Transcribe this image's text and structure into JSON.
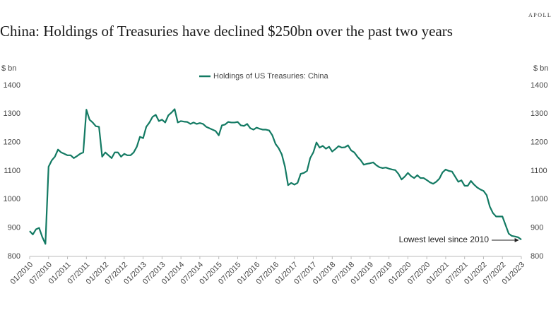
{
  "chart_data": {
    "type": "line",
    "title": "China: Holdings of Treasuries have declined $250bn over the past two years",
    "brand": "APOLLO",
    "y_label": "$ bn",
    "y2_label": "$ bn",
    "annotation": "Lowest level since 2010",
    "categories": [
      "01/2010",
      null,
      null,
      null,
      null,
      null,
      "07/2010",
      null,
      null,
      null,
      null,
      null,
      "01/2011",
      null,
      null,
      null,
      null,
      null,
      "07/2011",
      null,
      null,
      null,
      null,
      null,
      "01/2012",
      null,
      null,
      null,
      null,
      null,
      "07/2012",
      null,
      null,
      null,
      null,
      null,
      "01/2013",
      null,
      null,
      null,
      null,
      null,
      "07/2013",
      null,
      null,
      null,
      null,
      null,
      "01/2014",
      null,
      null,
      null,
      null,
      null,
      "07/2014",
      null,
      null,
      null,
      null,
      null,
      "01/2015",
      null,
      null,
      null,
      null,
      null,
      "07/2015",
      null,
      null,
      null,
      null,
      null,
      "01/2016",
      null,
      null,
      null,
      null,
      null,
      "07/2016",
      null,
      null,
      null,
      null,
      null,
      "01/2017",
      null,
      null,
      null,
      null,
      null,
      "07/2017",
      null,
      null,
      null,
      null,
      null,
      "01/2018",
      null,
      null,
      null,
      null,
      null,
      "07/2018",
      null,
      null,
      null,
      null,
      null,
      "01/2019",
      null,
      null,
      null,
      null,
      null,
      "07/2019",
      null,
      null,
      null,
      null,
      null,
      "01/2020",
      null,
      null,
      null,
      null,
      null,
      "07/2020",
      null,
      null,
      null,
      null,
      null,
      "01/2021",
      null,
      null,
      null,
      null,
      null,
      "07/2021",
      null,
      null,
      null,
      null,
      null,
      "01/2022",
      null,
      null,
      null,
      null,
      null,
      "07/2022",
      null,
      null,
      null,
      null,
      null,
      "01/2023"
    ],
    "series": [
      {
        "name": "Holdings of US Treasuries: China",
        "color": "#137a63",
        "values": [
          889,
          877,
          895,
          900,
          868,
          844,
          1115,
          1137,
          1150,
          1175,
          1165,
          1160,
          1155,
          1155,
          1145,
          1152,
          1160,
          1165,
          1315,
          1280,
          1270,
          1257,
          1255,
          1150,
          1165,
          1155,
          1145,
          1165,
          1165,
          1150,
          1160,
          1155,
          1155,
          1165,
          1185,
          1220,
          1215,
          1255,
          1270,
          1290,
          1297,
          1275,
          1280,
          1270,
          1295,
          1305,
          1317,
          1270,
          1275,
          1273,
          1272,
          1265,
          1270,
          1265,
          1268,
          1265,
          1255,
          1250,
          1245,
          1240,
          1225,
          1260,
          1263,
          1272,
          1270,
          1270,
          1272,
          1260,
          1258,
          1265,
          1250,
          1245,
          1252,
          1248,
          1245,
          1245,
          1242,
          1225,
          1195,
          1180,
          1158,
          1115,
          1050,
          1058,
          1052,
          1058,
          1090,
          1093,
          1100,
          1145,
          1165,
          1200,
          1182,
          1188,
          1178,
          1185,
          1168,
          1177,
          1187,
          1182,
          1183,
          1190,
          1172,
          1165,
          1150,
          1138,
          1122,
          1125,
          1127,
          1130,
          1120,
          1113,
          1110,
          1112,
          1108,
          1105,
          1103,
          1090,
          1070,
          1080,
          1093,
          1082,
          1075,
          1085,
          1075,
          1075,
          1068,
          1060,
          1055,
          1062,
          1073,
          1095,
          1105,
          1100,
          1098,
          1080,
          1062,
          1067,
          1048,
          1048,
          1065,
          1052,
          1042,
          1035,
          1030,
          1015,
          975,
          952,
          940,
          940,
          940,
          910,
          880,
          872,
          870,
          867,
          859
        ]
      }
    ],
    "ylim": [
      800,
      1400
    ],
    "yticks": [
      800,
      900,
      1000,
      1100,
      1200,
      1300,
      1400
    ],
    "y2lim": [
      800,
      1400
    ],
    "y2ticks": [
      800,
      900,
      1000,
      1100,
      1200,
      1300,
      1400
    ],
    "legend": "top"
  }
}
